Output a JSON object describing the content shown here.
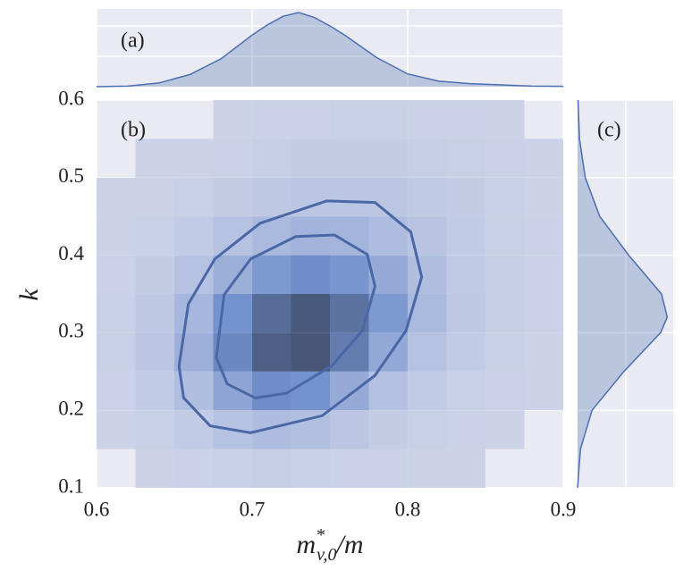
{
  "chart_data": [
    {
      "type": "heatmap",
      "panel_label": "(b)",
      "xlabel": [
        "m",
        "*",
        "v,0",
        "/m"
      ],
      "ylabel": "k",
      "xlim": [
        0.6,
        0.9
      ],
      "ylim": [
        0.1,
        0.6
      ],
      "xticks": [
        0.6,
        0.7,
        0.8,
        0.9
      ],
      "yticks": [
        0.1,
        0.2,
        0.3,
        0.4,
        0.5,
        0.6
      ],
      "grid": true,
      "xbins": [
        0.6,
        0.625,
        0.65,
        0.675,
        0.7,
        0.725,
        0.75,
        0.775,
        0.8,
        0.825,
        0.85,
        0.875,
        0.9
      ],
      "ybins": [
        0.1,
        0.15,
        0.2,
        0.25,
        0.3,
        0.35,
        0.4,
        0.45,
        0.5,
        0.55,
        0.6
      ],
      "values": [
        [
          0,
          1,
          2,
          3,
          4,
          3,
          2,
          2,
          1,
          1,
          0,
          0
        ],
        [
          1,
          3,
          6,
          12,
          16,
          14,
          9,
          5,
          3,
          2,
          1,
          0
        ],
        [
          2,
          6,
          15,
          32,
          48,
          45,
          28,
          13,
          6,
          3,
          2,
          1
        ],
        [
          3,
          9,
          24,
          52,
          85,
          92,
          62,
          30,
          12,
          6,
          3,
          1
        ],
        [
          3,
          8,
          20,
          45,
          75,
          90,
          70,
          40,
          18,
          8,
          4,
          2
        ],
        [
          2,
          5,
          12,
          25,
          40,
          48,
          42,
          28,
          15,
          7,
          4,
          2
        ],
        [
          1,
          3,
          6,
          12,
          18,
          22,
          21,
          16,
          11,
          6,
          3,
          2
        ],
        [
          1,
          1,
          3,
          5,
          8,
          10,
          10,
          9,
          7,
          5,
          3,
          1
        ],
        [
          0,
          1,
          1,
          2,
          4,
          5,
          5,
          5,
          4,
          3,
          2,
          1
        ],
        [
          0,
          0,
          0,
          1,
          2,
          2,
          3,
          3,
          2,
          2,
          1,
          0
        ]
      ],
      "colors": [
        "#c9d0e7",
        "#5d80c6",
        "#2b3d63"
      ],
      "contours": [
        {
          "color": "#4a67a6",
          "x": [
            0.653,
            0.659,
            0.676,
            0.705,
            0.748,
            0.779,
            0.802,
            0.809,
            0.799,
            0.779,
            0.745,
            0.699,
            0.673,
            0.656
          ],
          "y": [
            0.257,
            0.337,
            0.395,
            0.441,
            0.47,
            0.468,
            0.43,
            0.372,
            0.303,
            0.245,
            0.193,
            0.171,
            0.18,
            0.216
          ]
        },
        {
          "color": "#4a67a6",
          "x": [
            0.677,
            0.682,
            0.699,
            0.728,
            0.753,
            0.774,
            0.779,
            0.771,
            0.751,
            0.722,
            0.702,
            0.684
          ],
          "y": [
            0.268,
            0.349,
            0.395,
            0.424,
            0.426,
            0.401,
            0.36,
            0.303,
            0.257,
            0.222,
            0.216,
            0.234
          ]
        }
      ]
    },
    {
      "type": "kde",
      "orientation": "vertical",
      "panel_label": "(a)",
      "color": "#4c6fb0",
      "x": [
        0.6,
        0.62,
        0.64,
        0.66,
        0.68,
        0.7,
        0.71,
        0.72,
        0.73,
        0.74,
        0.75,
        0.76,
        0.78,
        0.8,
        0.82,
        0.84,
        0.86,
        0.88,
        0.9
      ],
      "values": [
        0.0,
        0.1,
        0.6,
        2.0,
        4.6,
        8.5,
        10.2,
        11.6,
        12.2,
        11.4,
        10.0,
        8.4,
        4.8,
        2.1,
        0.9,
        0.5,
        0.3,
        0.1,
        0.05
      ],
      "xlim": [
        0.6,
        0.9
      ],
      "ylim": [
        0,
        12.8
      ],
      "yticks": [
        5,
        10
      ]
    },
    {
      "type": "kde",
      "orientation": "horizontal",
      "panel_label": "(c)",
      "color": "#4c6fb0",
      "y": [
        0.1,
        0.15,
        0.2,
        0.25,
        0.3,
        0.32,
        0.35,
        0.4,
        0.45,
        0.5,
        0.55,
        0.6
      ],
      "values": [
        0.0,
        0.3,
        1.5,
        4.8,
        8.6,
        9.3,
        8.7,
        5.3,
        2.3,
        0.8,
        0.2,
        0.05
      ],
      "ylim": [
        0.1,
        0.6
      ],
      "xlim": [
        0,
        10.1
      ],
      "xticks": [
        5,
        10
      ]
    }
  ]
}
